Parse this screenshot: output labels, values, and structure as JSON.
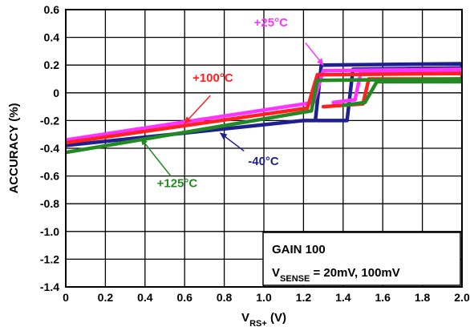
{
  "chart_data": {
    "type": "line",
    "xlabel": {
      "main": "V",
      "sub": "RS+",
      "unit": " (V)"
    },
    "ylabel": "ACCURACY (%)",
    "xlim": [
      0,
      2.0
    ],
    "ylim": [
      -1.4,
      0.6
    ],
    "x_ticks": [
      "0",
      "0.2",
      "0.4",
      "0.6",
      "0.8",
      "1.0",
      "1.2",
      "1.4",
      "1.6",
      "1.8",
      "2.0"
    ],
    "y_ticks": [
      "0.6",
      "0.4",
      "0.2",
      "0",
      "-0.2",
      "-0.4",
      "-0.6",
      "-0.8",
      "-1.0",
      "-1.2",
      "-1.4"
    ],
    "grid": true,
    "series": [
      {
        "name": "-40°C",
        "color": "#1f1f8f",
        "points": [
          [
            0,
            -0.38
          ],
          [
            1.2,
            -0.2
          ],
          [
            1.26,
            -0.2
          ],
          [
            1.29,
            0.2
          ],
          [
            2.0,
            0.21
          ],
          [
            2.0,
            0.18
          ],
          [
            1.45,
            0.17
          ],
          [
            1.42,
            -0.2
          ],
          [
            1.3,
            -0.2
          ],
          [
            1.27,
            -0.2
          ]
        ]
      },
      {
        "name": "+25°C",
        "color": "#ff33ff",
        "points": [
          [
            0,
            -0.34
          ],
          [
            1.25,
            -0.07
          ],
          [
            1.3,
            0.16
          ],
          [
            2.0,
            0.17
          ],
          [
            2.0,
            0.15
          ],
          [
            1.49,
            0.15
          ],
          [
            1.46,
            -0.05
          ],
          [
            1.35,
            -0.07
          ]
        ]
      },
      {
        "name": "+100°C",
        "color": "#ff2020",
        "points": [
          [
            0,
            -0.36
          ],
          [
            1.22,
            -0.11
          ],
          [
            1.27,
            0.13
          ],
          [
            2.0,
            0.14
          ],
          [
            2.0,
            0.1
          ],
          [
            1.53,
            0.1
          ],
          [
            1.5,
            -0.08
          ],
          [
            1.3,
            -0.1
          ]
        ]
      },
      {
        "name": "+125°C",
        "color": "#238a23",
        "points": [
          [
            0,
            -0.43
          ],
          [
            1.24,
            -0.13
          ],
          [
            1.27,
            0.09
          ],
          [
            2.0,
            0.1
          ],
          [
            2.0,
            0.08
          ],
          [
            1.57,
            0.08
          ],
          [
            1.51,
            -0.07
          ],
          [
            1.4,
            -0.09
          ]
        ]
      }
    ],
    "annotations": [
      {
        "label": "+25°C",
        "color": "#ff33ff",
        "text_at": [
          0.95,
          0.48
        ],
        "arrow_from": [
          1.21,
          0.36
        ],
        "arrow_to": [
          1.3,
          0.2
        ]
      },
      {
        "label": "+100°C",
        "color": "#ff2020",
        "text_at": [
          0.64,
          0.08
        ],
        "arrow_from": [
          0.73,
          -0.02
        ],
        "arrow_to": [
          0.6,
          -0.22
        ]
      },
      {
        "label": "-40°C",
        "color": "#1f1f8f",
        "text_at": [
          0.92,
          -0.52
        ],
        "arrow_from": [
          0.9,
          -0.42
        ],
        "arrow_to": [
          0.78,
          -0.29
        ]
      },
      {
        "label": "+125°C",
        "color": "#238a23",
        "text_at": [
          0.46,
          -0.68
        ],
        "arrow_from": [
          0.53,
          -0.6
        ],
        "arrow_to": [
          0.38,
          -0.33
        ]
      }
    ],
    "conditions_box": {
      "line1": "GAIN 100",
      "line2_main": "V",
      "line2_sub": "SENSE",
      "line2_rest": " = 20mV, 100mV"
    }
  }
}
